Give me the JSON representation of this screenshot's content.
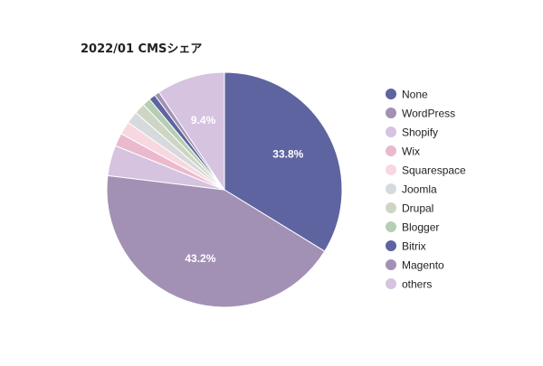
{
  "chart_data": {
    "type": "pie",
    "title": "2022/01 CMSシェア",
    "legend_position": "right",
    "start_angle_deg": 0,
    "direction": "clockwise",
    "slices": [
      {
        "label": "None",
        "value": 33.8,
        "color": "#5e64a0",
        "data_label": "33.8%"
      },
      {
        "label": "WordPress",
        "value": 43.2,
        "color": "#a291b5",
        "data_label": "43.2%"
      },
      {
        "label": "Shopify",
        "value": 4.2,
        "color": "#d5c3e0",
        "data_label": ""
      },
      {
        "label": "Wix",
        "value": 1.8,
        "color": "#ebb9cd",
        "data_label": ""
      },
      {
        "label": "Squarespace",
        "value": 1.8,
        "color": "#f8d8e0",
        "data_label": ""
      },
      {
        "label": "Joomla",
        "value": 1.7,
        "color": "#d7dadd",
        "data_label": ""
      },
      {
        "label": "Drupal",
        "value": 1.5,
        "color": "#ced5c4",
        "data_label": ""
      },
      {
        "label": "Blogger",
        "value": 1.1,
        "color": "#b6cfb4",
        "data_label": ""
      },
      {
        "label": "Bitrix",
        "value": 0.9,
        "color": "#5e64a0",
        "data_label": ""
      },
      {
        "label": "Magento",
        "value": 0.7,
        "color": "#a291b5",
        "data_label": ""
      },
      {
        "label": "others",
        "value": 9.4,
        "color": "#d5c3e0",
        "data_label": "9.4%"
      }
    ]
  }
}
